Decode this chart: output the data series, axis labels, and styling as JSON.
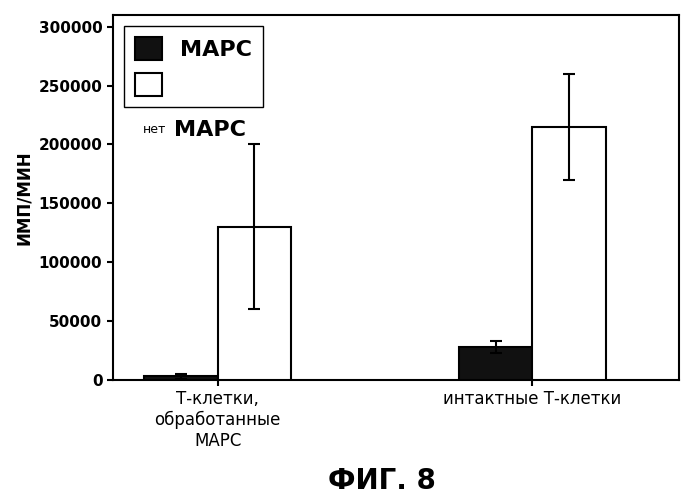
{
  "groups": [
    "Т-клетки,\nобработанные\nМАРС",
    "интактные Т-клетки"
  ],
  "series": [
    {
      "label": "МАРС",
      "color": "#111111",
      "values": [
        3000,
        28000
      ],
      "errors": [
        2000,
        5000
      ]
    },
    {
      "label_small": "нет",
      "label_large": "МАРС",
      "color": "#ffffff",
      "values": [
        130000,
        215000
      ],
      "errors": [
        70000,
        45000
      ]
    }
  ],
  "ylabel": "ИМП/МИН",
  "ylim": [
    0,
    310000
  ],
  "yticks": [
    0,
    50000,
    100000,
    150000,
    200000,
    250000,
    300000
  ],
  "ytick_labels": [
    "0",
    "50000",
    "100000",
    "150000",
    "200000",
    "250000",
    "300000"
  ],
  "figure_label": "ФИГ. 8",
  "bar_width": 0.35,
  "group_centers": [
    0.5,
    2.0
  ],
  "background_color": "#ffffff",
  "edge_color": "#000000",
  "fig_label_fontsize": 20,
  "ylabel_fontsize": 12,
  "tick_fontsize": 11,
  "xtick_fontsize": 12,
  "legend_large_fontsize": 16,
  "legend_small_fontsize": 9
}
